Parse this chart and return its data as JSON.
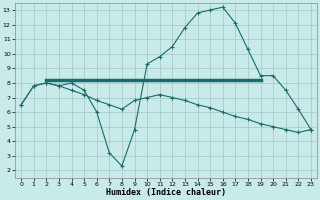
{
  "xlabel": "Humidex (Indice chaleur)",
  "bg_color": "#c8eae8",
  "grid_color": "#a8ceca",
  "line_color": "#1a6b6b",
  "xlim": [
    -0.5,
    23.5
  ],
  "ylim": [
    1.5,
    13.5
  ],
  "xticks": [
    0,
    1,
    2,
    3,
    4,
    5,
    6,
    7,
    8,
    9,
    10,
    11,
    12,
    13,
    14,
    15,
    16,
    17,
    18,
    19,
    20,
    21,
    22,
    23
  ],
  "yticks": [
    2,
    3,
    4,
    5,
    6,
    7,
    8,
    9,
    10,
    11,
    12,
    13
  ],
  "series1_x": [
    0,
    1,
    2,
    3,
    4,
    5,
    6,
    7,
    8,
    9,
    10,
    11,
    12,
    13,
    14,
    15,
    16,
    17,
    18,
    19,
    20,
    21,
    22,
    23
  ],
  "series1_y": [
    6.5,
    7.8,
    8.0,
    7.8,
    8.0,
    7.5,
    6.0,
    3.2,
    2.3,
    4.8,
    9.3,
    9.8,
    10.5,
    11.8,
    12.8,
    13.0,
    13.2,
    12.1,
    10.3,
    8.5,
    8.5,
    7.5,
    6.2,
    4.8
  ],
  "series2_x": [
    2,
    19
  ],
  "series2_y": [
    8.2,
    8.2
  ],
  "series3_x": [
    0,
    1,
    2,
    3,
    4,
    5,
    6,
    7,
    8,
    9,
    10,
    11,
    12,
    13,
    14,
    15,
    16,
    17,
    18,
    19,
    20,
    21,
    22,
    23
  ],
  "series3_y": [
    6.5,
    7.8,
    8.0,
    7.8,
    7.5,
    7.2,
    6.8,
    6.5,
    6.2,
    6.8,
    7.0,
    7.2,
    7.0,
    6.8,
    6.5,
    6.3,
    6.0,
    5.7,
    5.5,
    5.2,
    5.0,
    4.8,
    4.6,
    4.8
  ]
}
